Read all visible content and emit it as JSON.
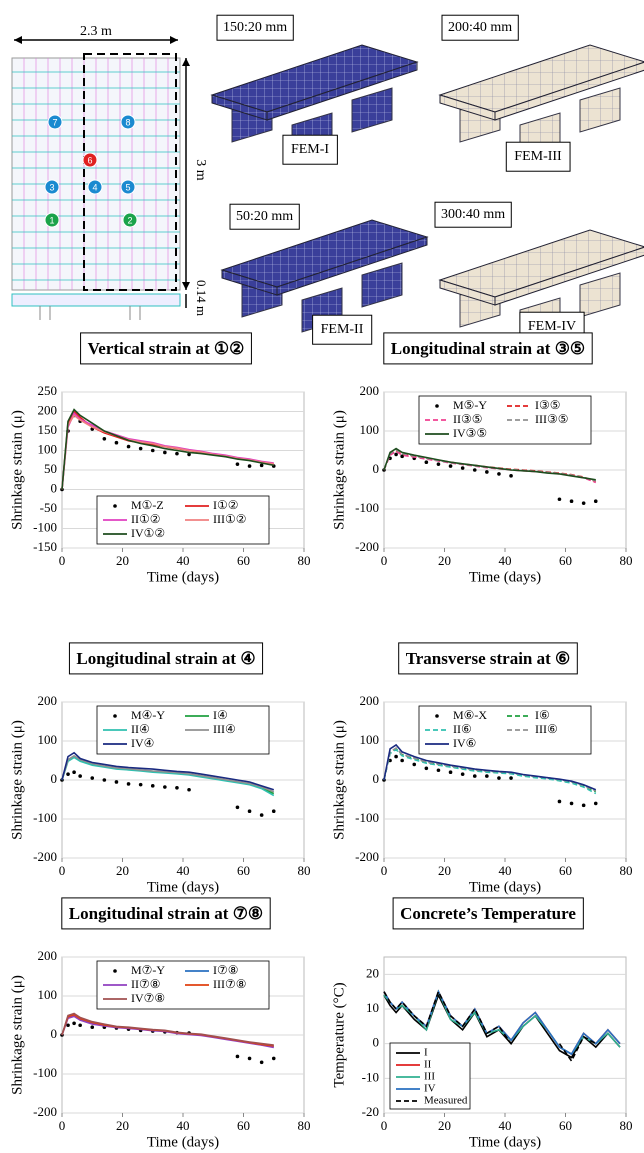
{
  "diagram": {
    "width_label": "2.3 m",
    "height_label": "3 m",
    "thickness_label": "0.14 m",
    "points": [
      "1",
      "2",
      "3",
      "4",
      "5",
      "6",
      "7",
      "8"
    ],
    "meshes": [
      {
        "size": "150:20 mm",
        "name": "FEM-I"
      },
      {
        "size": "200:40 mm",
        "name": "FEM-III"
      },
      {
        "size": "50:20 mm",
        "name": "FEM-II"
      },
      {
        "size": "300:40 mm",
        "name": "FEM-IV"
      }
    ]
  },
  "chart_data": [
    {
      "type": "line",
      "title": "Vertical strain at ①②",
      "xlabel": "Time (days)",
      "ylabel": "Shrinkage strain (μ)",
      "xlim": [
        0,
        80
      ],
      "xticks": [
        0,
        20,
        40,
        60,
        80
      ],
      "ylim": [
        -150,
        250
      ],
      "yticks": [
        -150,
        -100,
        -50,
        0,
        50,
        100,
        150,
        200,
        250
      ],
      "grid": true,
      "legend": "lower center",
      "x": [
        0,
        2,
        4,
        6,
        10,
        14,
        18,
        22,
        26,
        30,
        34,
        38,
        42,
        46,
        50,
        54,
        58,
        62,
        66,
        70
      ],
      "series": [
        {
          "name": "M①-Z",
          "color": "#000000",
          "style": "dots",
          "values": [
            0,
            150,
            190,
            175,
            155,
            130,
            120,
            110,
            105,
            100,
            95,
            92,
            90,
            null,
            null,
            null,
            65,
            60,
            62,
            60
          ]
        },
        {
          "name": "I①②",
          "color": "#e02020",
          "style": "solid",
          "values": [
            0,
            170,
            200,
            185,
            160,
            145,
            135,
            125,
            120,
            115,
            110,
            105,
            100,
            95,
            90,
            85,
            80,
            75,
            70,
            65
          ]
        },
        {
          "name": "II①②",
          "color": "#e040c0",
          "style": "solid",
          "values": [
            0,
            160,
            195,
            180,
            165,
            150,
            140,
            130,
            125,
            120,
            112,
            108,
            102,
            98,
            92,
            88,
            82,
            78,
            72,
            68
          ]
        },
        {
          "name": "III①②",
          "color": "#f08080",
          "style": "solid",
          "values": [
            0,
            165,
            190,
            178,
            160,
            148,
            138,
            128,
            122,
            118,
            110,
            106,
            100,
            96,
            90,
            86,
            80,
            76,
            70,
            66
          ]
        },
        {
          "name": "IV①②",
          "color": "#1e4d1e",
          "style": "solid",
          "values": [
            0,
            175,
            205,
            190,
            170,
            150,
            138,
            126,
            118,
            112,
            105,
            100,
            95,
            92,
            88,
            84,
            78,
            74,
            68,
            62
          ]
        }
      ]
    },
    {
      "type": "line",
      "title": "Longitudinal strain at ③⑤",
      "xlabel": "Time (days)",
      "ylabel": "Shrinkage strain (μ)",
      "xlim": [
        0,
        80
      ],
      "xticks": [
        0,
        20,
        40,
        60,
        80
      ],
      "ylim": [
        -200,
        200
      ],
      "yticks": [
        -200,
        -100,
        0,
        100,
        200
      ],
      "grid": true,
      "legend": "upper center",
      "x": [
        0,
        2,
        4,
        6,
        10,
        14,
        18,
        22,
        26,
        30,
        34,
        38,
        42,
        46,
        50,
        54,
        58,
        62,
        66,
        70
      ],
      "series": [
        {
          "name": "M⑤-Y",
          "color": "#000000",
          "style": "dots",
          "values": [
            0,
            30,
            40,
            35,
            30,
            20,
            15,
            10,
            5,
            0,
            -5,
            -10,
            -15,
            null,
            null,
            null,
            -75,
            -80,
            -85,
            -80
          ]
        },
        {
          "name": "I③⑤",
          "color": "#e02020",
          "style": "dashed",
          "values": [
            0,
            40,
            50,
            40,
            35,
            30,
            25,
            20,
            15,
            12,
            8,
            5,
            2,
            0,
            -2,
            -5,
            -8,
            -12,
            -18,
            -30
          ]
        },
        {
          "name": "II③⑤",
          "color": "#f04090",
          "style": "dashed",
          "values": [
            0,
            38,
            48,
            38,
            33,
            28,
            23,
            18,
            14,
            10,
            6,
            3,
            0,
            -2,
            -4,
            -7,
            -10,
            -14,
            -20,
            -32
          ]
        },
        {
          "name": "III③⑤",
          "color": "#909090",
          "style": "dashed",
          "values": [
            0,
            42,
            52,
            42,
            36,
            30,
            24,
            19,
            15,
            11,
            7,
            4,
            1,
            -1,
            -3,
            -6,
            -9,
            -13,
            -19,
            -28
          ]
        },
        {
          "name": "IV③⑤",
          "color": "#1e4d1e",
          "style": "solid",
          "values": [
            0,
            45,
            55,
            45,
            38,
            32,
            26,
            20,
            16,
            12,
            8,
            4,
            0,
            -2,
            -4,
            -8,
            -10,
            -15,
            -20,
            -25
          ]
        }
      ]
    },
    {
      "type": "line",
      "title": "Longitudinal strain at ④",
      "xlabel": "Time (days)",
      "ylabel": "Shrinkage strain (μ)",
      "xlim": [
        0,
        80
      ],
      "xticks": [
        0,
        20,
        40,
        60,
        80
      ],
      "ylim": [
        -200,
        200
      ],
      "yticks": [
        -200,
        -100,
        0,
        100,
        200
      ],
      "grid": true,
      "legend": "upper center",
      "x": [
        0,
        2,
        4,
        6,
        10,
        14,
        18,
        22,
        26,
        30,
        34,
        38,
        42,
        46,
        50,
        54,
        58,
        62,
        66,
        70
      ],
      "series": [
        {
          "name": "M④-Y",
          "color": "#000000",
          "style": "dots",
          "values": [
            0,
            15,
            20,
            10,
            5,
            0,
            -5,
            -10,
            -12,
            -15,
            -18,
            -20,
            -25,
            null,
            null,
            null,
            -70,
            -80,
            -90,
            -80
          ]
        },
        {
          "name": "I④",
          "color": "#20a040",
          "style": "solid",
          "values": [
            0,
            50,
            60,
            50,
            40,
            35,
            30,
            28,
            25,
            22,
            20,
            18,
            15,
            10,
            5,
            0,
            -5,
            -10,
            -20,
            -35
          ]
        },
        {
          "name": "II④",
          "color": "#30c0b0",
          "style": "solid",
          "values": [
            0,
            48,
            58,
            48,
            38,
            33,
            28,
            26,
            23,
            20,
            18,
            16,
            13,
            8,
            3,
            -2,
            -7,
            -12,
            -22,
            -40
          ]
        },
        {
          "name": "III④",
          "color": "#909090",
          "style": "solid",
          "values": [
            0,
            52,
            62,
            52,
            42,
            36,
            31,
            29,
            26,
            23,
            21,
            19,
            16,
            11,
            6,
            1,
            -4,
            -9,
            -18,
            -30
          ]
        },
        {
          "name": "IV④",
          "color": "#1a2a80",
          "style": "solid",
          "values": [
            0,
            60,
            70,
            55,
            45,
            40,
            35,
            32,
            30,
            28,
            25,
            22,
            20,
            15,
            10,
            5,
            0,
            -5,
            -15,
            -25
          ]
        }
      ]
    },
    {
      "type": "line",
      "title": "Transverse strain at ⑥",
      "xlabel": "Time (days)",
      "ylabel": "Shrinkage strain (μ)",
      "xlim": [
        0,
        80
      ],
      "xticks": [
        0,
        20,
        40,
        60,
        80
      ],
      "ylim": [
        -200,
        200
      ],
      "yticks": [
        -200,
        -100,
        0,
        100,
        200
      ],
      "grid": true,
      "legend": "upper center",
      "x": [
        0,
        2,
        4,
        6,
        10,
        14,
        18,
        22,
        26,
        30,
        34,
        38,
        42,
        46,
        50,
        54,
        58,
        62,
        66,
        70
      ],
      "series": [
        {
          "name": "M⑥-X",
          "color": "#000000",
          "style": "dots",
          "values": [
            0,
            50,
            60,
            50,
            40,
            30,
            25,
            20,
            15,
            10,
            10,
            5,
            5,
            null,
            null,
            null,
            -55,
            -60,
            -65,
            -60
          ]
        },
        {
          "name": "I⑥",
          "color": "#20a040",
          "style": "dashed",
          "values": [
            0,
            70,
            80,
            65,
            55,
            45,
            40,
            35,
            30,
            25,
            22,
            20,
            18,
            12,
            8,
            5,
            0,
            -5,
            -15,
            -30
          ]
        },
        {
          "name": "II⑥",
          "color": "#30c0b0",
          "style": "dashed",
          "values": [
            0,
            68,
            78,
            62,
            52,
            43,
            38,
            33,
            28,
            23,
            20,
            18,
            16,
            10,
            6,
            3,
            -2,
            -8,
            -18,
            -35
          ]
        },
        {
          "name": "III⑥",
          "color": "#909090",
          "style": "dashed",
          "values": [
            0,
            72,
            82,
            66,
            56,
            46,
            41,
            36,
            31,
            26,
            23,
            21,
            19,
            13,
            9,
            6,
            1,
            -4,
            -14,
            -28
          ]
        },
        {
          "name": "IV⑥",
          "color": "#1a2a80",
          "style": "solid",
          "values": [
            0,
            80,
            90,
            72,
            60,
            50,
            44,
            38,
            33,
            28,
            25,
            22,
            20,
            14,
            10,
            6,
            2,
            -3,
            -12,
            -25
          ]
        }
      ]
    },
    {
      "type": "line",
      "title": "Longitudinal strain at ⑦⑧",
      "xlabel": "Time (days)",
      "ylabel": "Shrinkage strain (μ)",
      "xlim": [
        0,
        80
      ],
      "xticks": [
        0,
        20,
        40,
        60,
        80
      ],
      "ylim": [
        -200,
        200
      ],
      "yticks": [
        -200,
        -100,
        0,
        100,
        200
      ],
      "grid": true,
      "legend": "upper center",
      "x": [
        0,
        2,
        4,
        6,
        10,
        14,
        18,
        22,
        26,
        30,
        34,
        38,
        42,
        46,
        50,
        54,
        58,
        62,
        66,
        70
      ],
      "series": [
        {
          "name": "M⑦-Y",
          "color": "#000000",
          "style": "dots",
          "values": [
            0,
            25,
            30,
            25,
            20,
            20,
            18,
            15,
            12,
            10,
            8,
            6,
            5,
            null,
            null,
            null,
            -55,
            -60,
            -70,
            -60
          ]
        },
        {
          "name": "I⑦⑧",
          "color": "#2a70c0",
          "style": "solid",
          "values": [
            0,
            45,
            50,
            40,
            30,
            25,
            20,
            18,
            15,
            12,
            10,
            5,
            2,
            0,
            -5,
            -10,
            -15,
            -20,
            -25,
            -30
          ]
        },
        {
          "name": "II⑦⑧",
          "color": "#9040c0",
          "style": "solid",
          "values": [
            0,
            43,
            48,
            38,
            28,
            23,
            19,
            17,
            14,
            11,
            9,
            4,
            1,
            -1,
            -6,
            -11,
            -16,
            -21,
            -26,
            -32
          ]
        },
        {
          "name": "III⑦⑧",
          "color": "#e04010",
          "style": "solid",
          "values": [
            0,
            47,
            52,
            42,
            32,
            26,
            21,
            19,
            16,
            13,
            11,
            6,
            3,
            1,
            -4,
            -9,
            -14,
            -19,
            -24,
            -28
          ]
        },
        {
          "name": "IV⑦⑧",
          "color": "#a05050",
          "style": "solid",
          "values": [
            0,
            50,
            55,
            45,
            34,
            28,
            22,
            20,
            17,
            14,
            12,
            7,
            4,
            2,
            -3,
            -8,
            -13,
            -18,
            -22,
            -26
          ]
        }
      ]
    },
    {
      "type": "line",
      "title": "Concrete’s Temperature",
      "xlabel": "Time (days)",
      "ylabel": "Temperature (°C)",
      "xlim": [
        0,
        80
      ],
      "xticks": [
        0,
        20,
        40,
        60,
        80
      ],
      "ylim": [
        -20,
        25
      ],
      "yticks": [
        -20,
        -10,
        0,
        10,
        20
      ],
      "grid": true,
      "legend": "lower left",
      "x": [
        0,
        2,
        4,
        6,
        10,
        14,
        18,
        22,
        26,
        30,
        34,
        38,
        42,
        46,
        50,
        54,
        58,
        62,
        66,
        70,
        74,
        78
      ],
      "series": [
        {
          "name": "I",
          "color": "#000000",
          "style": "solid",
          "values": [
            14,
            11,
            9,
            11,
            7,
            4,
            14,
            7,
            4,
            9,
            2,
            4,
            0,
            5,
            8,
            3,
            -2,
            -4,
            2,
            -1,
            3,
            -1
          ]
        },
        {
          "name": "II",
          "color": "#e02020",
          "style": "solid",
          "values": [
            15,
            12,
            10,
            12,
            8,
            5,
            15,
            8,
            5,
            10,
            3,
            5,
            1,
            6,
            9,
            4,
            -1,
            -3,
            3,
            0,
            4,
            0
          ]
        },
        {
          "name": "III",
          "color": "#30b090",
          "style": "solid",
          "values": [
            14,
            12,
            10,
            11,
            8,
            4,
            15,
            7,
            5,
            9,
            3,
            4,
            1,
            5,
            8,
            4,
            -1,
            -3,
            2,
            0,
            3,
            -1
          ]
        },
        {
          "name": "IV",
          "color": "#2a70c0",
          "style": "solid",
          "values": [
            15,
            12,
            10,
            12,
            8,
            5,
            15,
            8,
            5,
            10,
            3,
            5,
            1,
            6,
            9,
            4,
            -1,
            -3,
            3,
            0,
            4,
            0
          ]
        },
        {
          "name": "Measured",
          "color": "#000000",
          "style": "dashed",
          "values": [
            15,
            12,
            10,
            12,
            8,
            5,
            15,
            8,
            5,
            10,
            3,
            5,
            0,
            null,
            null,
            null,
            0,
            -5,
            2,
            0,
            null,
            null
          ]
        }
      ]
    }
  ]
}
